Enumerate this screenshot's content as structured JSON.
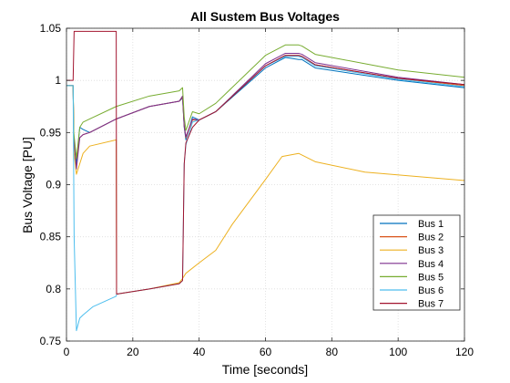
{
  "chart_data": {
    "type": "line",
    "title": "All Sustem Bus Voltages",
    "xlabel": "Time [seconds]",
    "ylabel": "Bus Voltage [PU]",
    "xlim": [
      0,
      120
    ],
    "ylim": [
      0.75,
      1.05
    ],
    "xticks": [
      0,
      20,
      40,
      60,
      80,
      100,
      120
    ],
    "yticks": [
      0.75,
      0.8,
      0.85,
      0.9,
      0.95,
      1,
      1.05
    ],
    "xtick_labels": [
      "0",
      "20",
      "40",
      "60",
      "80",
      "100",
      "120"
    ],
    "ytick_labels": [
      "0.75",
      "0.8",
      "0.85",
      "0.9",
      "0.95",
      "1",
      "1.05"
    ],
    "grid": true,
    "legend_position": "bottom-right",
    "series": [
      {
        "name": "Bus 1",
        "color": "#0072BD",
        "points": [
          [
            0,
            0.995
          ],
          [
            2,
            0.995
          ],
          [
            2.2,
            0.945
          ],
          [
            3,
            0.92
          ],
          [
            4,
            0.955
          ],
          [
            5,
            0.953
          ],
          [
            7,
            0.95
          ],
          [
            15,
            0.963
          ],
          [
            25,
            0.975
          ],
          [
            34,
            0.98
          ],
          [
            35,
            0.983
          ],
          [
            35.5,
            0.955
          ],
          [
            36,
            0.943
          ],
          [
            38,
            0.965
          ],
          [
            40,
            0.962
          ],
          [
            45,
            0.97
          ],
          [
            60,
            1.012
          ],
          [
            66,
            1.022
          ],
          [
            70,
            1.02
          ],
          [
            71,
            1.02
          ],
          [
            75,
            1.012
          ],
          [
            100,
            1.0
          ],
          [
            120,
            0.993
          ]
        ]
      },
      {
        "name": "Bus 2",
        "color": "#D95319",
        "points": [
          [
            0,
            0.995
          ],
          [
            2,
            0.995
          ],
          [
            2.2,
            0.945
          ],
          [
            3,
            0.925
          ],
          [
            4,
            0.945
          ],
          [
            5,
            0.948
          ],
          [
            7,
            0.95
          ],
          [
            15,
            0.963
          ],
          [
            25,
            0.975
          ],
          [
            34,
            0.98
          ],
          [
            35,
            0.984
          ],
          [
            35.5,
            0.956
          ],
          [
            36,
            0.945
          ],
          [
            38,
            0.962
          ],
          [
            40,
            0.962
          ],
          [
            45,
            0.97
          ],
          [
            60,
            1.014
          ],
          [
            66,
            1.024
          ],
          [
            70,
            1.024
          ],
          [
            71,
            1.023
          ],
          [
            75,
            1.015
          ],
          [
            100,
            1.002
          ],
          [
            120,
            0.995
          ]
        ]
      },
      {
        "name": "Bus 3",
        "color": "#EDB120",
        "points": [
          [
            0,
            0.995
          ],
          [
            2,
            0.995
          ],
          [
            2.3,
            0.93
          ],
          [
            3,
            0.91
          ],
          [
            4,
            0.92
          ],
          [
            5,
            0.93
          ],
          [
            7,
            0.937
          ],
          [
            15,
            0.943
          ],
          [
            15.1,
            0.795
          ],
          [
            25,
            0.8
          ],
          [
            34,
            0.806
          ],
          [
            35,
            0.81
          ],
          [
            36,
            0.815
          ],
          [
            40,
            0.825
          ],
          [
            45,
            0.837
          ],
          [
            50,
            0.862
          ],
          [
            60,
            0.905
          ],
          [
            65,
            0.927
          ],
          [
            70,
            0.93
          ],
          [
            75,
            0.922
          ],
          [
            90,
            0.912
          ],
          [
            120,
            0.904
          ]
        ]
      },
      {
        "name": "Bus 4",
        "color": "#7E2F8E",
        "points": [
          [
            0,
            0.995
          ],
          [
            2,
            0.995
          ],
          [
            2.2,
            0.945
          ],
          [
            3,
            0.915
          ],
          [
            4,
            0.945
          ],
          [
            5,
            0.948
          ],
          [
            7,
            0.95
          ],
          [
            15,
            0.963
          ],
          [
            25,
            0.975
          ],
          [
            34,
            0.98
          ],
          [
            35,
            0.985
          ],
          [
            35.5,
            0.956
          ],
          [
            36,
            0.946
          ],
          [
            38,
            0.963
          ],
          [
            40,
            0.962
          ],
          [
            45,
            0.97
          ],
          [
            60,
            1.016
          ],
          [
            66,
            1.026
          ],
          [
            70,
            1.026
          ],
          [
            71,
            1.025
          ],
          [
            75,
            1.017
          ],
          [
            100,
            1.003
          ],
          [
            120,
            0.996
          ]
        ]
      },
      {
        "name": "Bus 5",
        "color": "#77AC30",
        "points": [
          [
            0,
            0.995
          ],
          [
            2,
            0.995
          ],
          [
            2.2,
            0.95
          ],
          [
            3,
            0.925
          ],
          [
            4,
            0.955
          ],
          [
            5,
            0.96
          ],
          [
            7,
            0.963
          ],
          [
            15,
            0.975
          ],
          [
            25,
            0.985
          ],
          [
            34,
            0.99
          ],
          [
            35,
            0.993
          ],
          [
            35.5,
            0.965
          ],
          [
            36,
            0.952
          ],
          [
            38,
            0.97
          ],
          [
            40,
            0.968
          ],
          [
            45,
            0.978
          ],
          [
            60,
            1.024
          ],
          [
            66,
            1.034
          ],
          [
            70,
            1.034
          ],
          [
            71,
            1.033
          ],
          [
            75,
            1.025
          ],
          [
            100,
            1.01
          ],
          [
            120,
            1.003
          ]
        ]
      },
      {
        "name": "Bus 6",
        "color": "#4DBEEE",
        "points": [
          [
            0,
            0.995
          ],
          [
            2,
            0.995
          ],
          [
            2.3,
            0.85
          ],
          [
            3,
            0.76
          ],
          [
            4,
            0.772
          ],
          [
            5,
            0.775
          ],
          [
            8,
            0.783
          ],
          [
            15,
            0.793
          ],
          [
            15.1,
            0.795
          ],
          [
            25,
            0.8
          ],
          [
            34,
            0.805
          ],
          [
            35,
            0.808
          ],
          [
            35.5,
            0.92
          ],
          [
            36,
            0.938
          ],
          [
            38,
            0.96
          ],
          [
            40,
            0.962
          ],
          [
            45,
            0.97
          ],
          [
            60,
            1.014
          ],
          [
            66,
            1.023
          ],
          [
            70,
            1.023
          ],
          [
            71,
            1.022
          ],
          [
            75,
            1.014
          ],
          [
            100,
            1.001
          ],
          [
            120,
            0.994
          ]
        ]
      },
      {
        "name": "Bus 7",
        "color": "#A2142F",
        "points": [
          [
            0,
            1.0
          ],
          [
            2,
            1.0
          ],
          [
            2.3,
            1.047
          ],
          [
            15,
            1.047
          ],
          [
            15.1,
            0.795
          ],
          [
            25,
            0.8
          ],
          [
            34,
            0.805
          ],
          [
            35,
            0.808
          ],
          [
            35.5,
            0.92
          ],
          [
            36,
            0.94
          ],
          [
            38,
            0.955
          ],
          [
            40,
            0.962
          ],
          [
            45,
            0.97
          ],
          [
            60,
            1.014
          ],
          [
            66,
            1.024
          ],
          [
            70,
            1.024
          ],
          [
            71,
            1.023
          ],
          [
            75,
            1.015
          ],
          [
            100,
            1.002
          ],
          [
            120,
            0.996
          ]
        ]
      }
    ]
  }
}
